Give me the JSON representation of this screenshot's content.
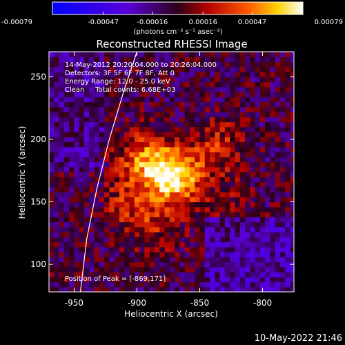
{
  "colorbar": {
    "tick_labels": [
      "-0.00079",
      "-0.00047",
      "-0.00016",
      "0.00016",
      "0.00047",
      "0.00079"
    ],
    "tick_values": [
      -0.00079,
      -0.00047,
      -0.00016,
      0.00016,
      0.00047,
      0.00079
    ],
    "range": [
      -0.00079,
      0.00079
    ],
    "units": "(photons cm⁻² s⁻¹ asec⁻²)",
    "colors": [
      "#0000ff",
      "#5a00d8",
      "#2b0018",
      "#b40000",
      "#ff5a00",
      "#ffd400",
      "#ffffff"
    ]
  },
  "plot": {
    "title": "Reconstructed RHESSI Image",
    "annotation_lines": [
      "14-May-2012 20:20:04.000 to 20:26:04.000",
      "Detectors: 3F 5F 6F 7F 8F, Att 0",
      "Energy Range: 12.0 - 25.0 keV",
      "Clean     Total counts: 6.68E+03"
    ],
    "peak_label": "Position of Peak = [-869,171]",
    "xlabel": "Heliocentric X (arcsec)",
    "ylabel": "Heliocentric Y (arcsec)",
    "x_ticks": [
      "-950",
      "-900",
      "-850",
      "-800"
    ],
    "y_ticks": [
      "100",
      "150",
      "200",
      "250"
    ]
  },
  "footer": {
    "timestamp": "10-May-2022 21:46"
  },
  "chart_data": {
    "type": "heatmap",
    "title": "Reconstructed RHESSI Image",
    "xlabel": "Heliocentric X (arcsec)",
    "ylabel": "Heliocentric Y (arcsec)",
    "xlim": [
      -970,
      -775
    ],
    "ylim": [
      78,
      270
    ],
    "x_ticks": [
      -950,
      -900,
      -850,
      -800
    ],
    "y_ticks": [
      100,
      150,
      200,
      250
    ],
    "colorbar_range": [
      -0.00079,
      0.00079
    ],
    "peak": [
      -869,
      171
    ],
    "limb_curve": {
      "x": [
        -945,
        -940,
        -932,
        -922,
        -910,
        -900
      ],
      "y": [
        78,
        120,
        160,
        200,
        240,
        270
      ]
    },
    "sources": [
      {
        "x": -869,
        "y": 171,
        "intensity": 0.00079
      },
      {
        "x": -895,
        "y": 185,
        "intensity": 0.00047
      },
      {
        "x": -905,
        "y": 150,
        "intensity": 0.0003
      },
      {
        "x": -835,
        "y": 195,
        "intensity": 0.0003
      },
      {
        "x": -885,
        "y": 130,
        "intensity": 0.00022
      },
      {
        "x": -825,
        "y": 150,
        "intensity": 0.00012
      }
    ]
  }
}
